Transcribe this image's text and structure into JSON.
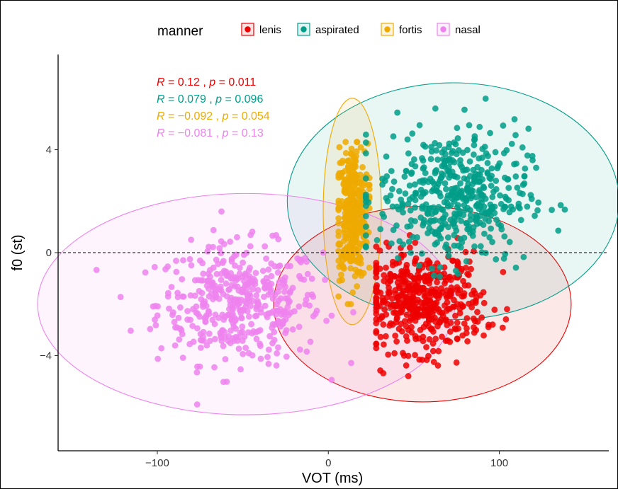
{
  "chart_data": {
    "type": "scatter",
    "xlabel": "VOT (ms)",
    "ylabel": "f0 (st)",
    "xlim": [
      -158,
      164
    ],
    "ylim": [
      -7.7,
      7.7
    ],
    "x_ticks": [
      -100,
      0,
      100
    ],
    "x_tick_labels": [
      "−100",
      "0",
      "100"
    ],
    "y_ticks": [
      -4,
      0,
      4
    ],
    "y_tick_labels": [
      "−4",
      "0",
      "4"
    ],
    "reference_line": {
      "y": 0,
      "style": "dashed"
    },
    "legend": {
      "title": "manner",
      "placement": "top",
      "entries": [
        "lenis",
        "aspirated",
        "fortis",
        "nasal"
      ]
    },
    "grid": false,
    "series": [
      {
        "name": "lenis",
        "color": "#EE0000",
        "n": 470,
        "center": [
          55,
          -1.9
        ],
        "spread": [
          18,
          0.95
        ],
        "x_range": [
          28,
          147
        ],
        "y_range": [
          -4.8,
          2.6
        ],
        "ellipse": {
          "cx": 55,
          "cy": -2.0,
          "rx": 87,
          "ry": 3.8
        },
        "stats": {
          "R": "0.12",
          "p": "0.011"
        }
      },
      {
        "name": "aspirated",
        "color": "#009E88",
        "n": 470,
        "center": [
          73,
          2.2
        ],
        "spread": [
          22,
          1.3
        ],
        "x_range": [
          22,
          150
        ],
        "y_range": [
          -2.0,
          6.3
        ],
        "ellipse": {
          "cx": 73,
          "cy": 2.0,
          "rx": 97,
          "ry": 4.6
        },
        "stats": {
          "R": "0.079",
          "p": "0.096"
        }
      },
      {
        "name": "fortis",
        "color": "#EFAA00",
        "n": 360,
        "center": [
          14,
          1.6
        ],
        "spread": [
          4.5,
          1.3
        ],
        "x_range": [
          6,
          24
        ],
        "y_range": [
          -2.0,
          4.3
        ],
        "ellipse": {
          "cx": 14,
          "cy": 1.6,
          "rx": 17,
          "ry": 4.4
        },
        "stats": {
          "R": "−0.092",
          "p": "0.054"
        }
      },
      {
        "name": "nasal",
        "color": "#EE82EE",
        "n": 440,
        "center": [
          -52,
          -2.0
        ],
        "spread": [
          24,
          1.15
        ],
        "x_range": [
          -145,
          24
        ],
        "y_range": [
          -5.9,
          1.6
        ],
        "ellipse": {
          "cx": -48,
          "cy": -2.0,
          "rx": 122,
          "ry": 4.3
        },
        "stats": {
          "R": "−0.081",
          "p": "0.13"
        }
      }
    ]
  }
}
